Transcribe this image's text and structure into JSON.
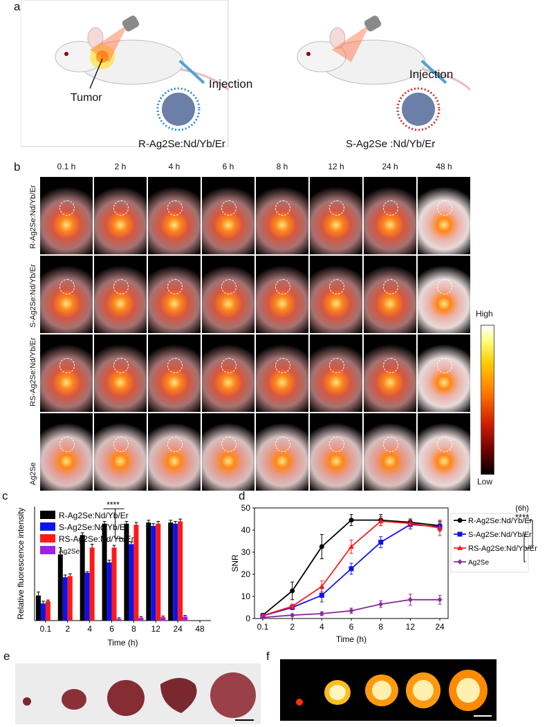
{
  "panel_letters": {
    "a": "a",
    "b": "b",
    "c": "c",
    "d": "d",
    "e": "e",
    "f": "f"
  },
  "panel_a": {
    "tumor_label": "Tumor",
    "injection_left": "Injection",
    "injection_right": "Injection",
    "caption_left": "R-Ag2Se:Nd/Yb/Er",
    "caption_right": "S-Ag2Se :Nd/Yb/Er"
  },
  "panel_b": {
    "times": [
      "0.1 h",
      "2 h",
      "4 h",
      "6 h",
      "8 h",
      "12 h",
      "24 h",
      "48 h"
    ],
    "rows": [
      "R-Ag2Se:Nd/Yb/Er",
      "S-Ag2Se:Nd/Yb/Er",
      "RS-Ag2Se:Nd/Yb/Er",
      "Ag2Se"
    ],
    "colorbar_high": "High",
    "colorbar_low": "Low",
    "colors": {
      "hot_low": "#000000",
      "hot_mid": "#c41e00",
      "hot_high": "#ffffff"
    }
  },
  "chart_data": [
    {
      "type": "bar",
      "ylabel": "Relative fluorescence intensity",
      "xlabel": "Time (h)",
      "categories": [
        "0.1",
        "2",
        "4",
        "6",
        "8",
        "12",
        "24",
        "48"
      ],
      "annotation": "****",
      "ylim": [
        0,
        1
      ],
      "series": [
        {
          "name": "R-Ag2Se:Nd/Yb/Er",
          "color": "#000000",
          "values": [
            0.22,
            0.58,
            0.75,
            0.85,
            0.85,
            0.86,
            0.86,
            0.0
          ]
        },
        {
          "name": "S-Ag2Se:Nd/Yb/Er",
          "color": "#1010ee",
          "values": [
            0.15,
            0.38,
            0.42,
            0.51,
            0.67,
            0.83,
            0.85,
            0.0
          ]
        },
        {
          "name": "RS-Ag2Se:Nd/Yb/Er",
          "color": "#ff1a1a",
          "values": [
            0.17,
            0.39,
            0.64,
            0.64,
            0.84,
            0.85,
            0.87,
            0.0
          ]
        },
        {
          "name": "Ag2Se",
          "color": "#a020f0",
          "values": [
            0.0,
            0.0,
            0.0,
            0.015,
            0.025,
            0.03,
            0.035,
            0.0
          ]
        }
      ],
      "errors": [
        [
          0.03,
          0.06,
          0.02,
          0.02,
          0.02,
          0.02,
          0.02,
          0
        ],
        [
          0.02,
          0.02,
          0.01,
          0.02,
          0.02,
          0.02,
          0.02,
          0
        ],
        [
          0.01,
          0.02,
          0.03,
          0.02,
          0.02,
          0.02,
          0.02,
          0
        ],
        [
          0,
          0,
          0,
          0.01,
          0.01,
          0.01,
          0.01,
          0
        ]
      ]
    },
    {
      "type": "line",
      "ylabel": "SNR",
      "xlabel": "Time (h)",
      "categories": [
        "0.1",
        "2",
        "4",
        "6",
        "8",
        "12",
        "24"
      ],
      "ylim": [
        0,
        50
      ],
      "yticks": [
        0,
        10,
        20,
        30,
        40,
        50
      ],
      "annotation_time": "(6h)",
      "annotation_stars": "****",
      "series": [
        {
          "name": "R-Ag2Se:Nd/Yb/Er",
          "color": "#000000",
          "marker": "circle",
          "values": [
            1.5,
            12.5,
            32.5,
            44.5,
            44.5,
            43.5,
            42.0
          ],
          "errors": [
            0.8,
            4.0,
            5.5,
            2.5,
            2.5,
            1.5,
            2.0
          ]
        },
        {
          "name": "S-Ag2Se:Nd/Yb/Er",
          "color": "#1010ee",
          "marker": "square",
          "values": [
            1.2,
            5.0,
            10.5,
            22.5,
            34.5,
            42.5,
            41.5
          ],
          "errors": [
            0.5,
            1.0,
            3.0,
            2.5,
            2.5,
            2.0,
            2.0
          ]
        },
        {
          "name": "RS-Ag2Se:Nd/Yb/Er",
          "color": "#ff1a1a",
          "marker": "triangle",
          "values": [
            1.3,
            5.5,
            14.5,
            32.5,
            44.0,
            43.0,
            41.0
          ],
          "errors": [
            0.5,
            1.0,
            2.5,
            3.0,
            2.0,
            1.5,
            3.5
          ]
        },
        {
          "name": "Ag2Se",
          "color": "#8b2b9b",
          "marker": "diamond",
          "values": [
            0.5,
            1.5,
            2.2,
            3.5,
            6.5,
            8.5,
            8.5
          ],
          "errors": [
            0.3,
            0.5,
            0.8,
            1.2,
            1.5,
            2.5,
            2.0
          ]
        }
      ]
    }
  ]
}
